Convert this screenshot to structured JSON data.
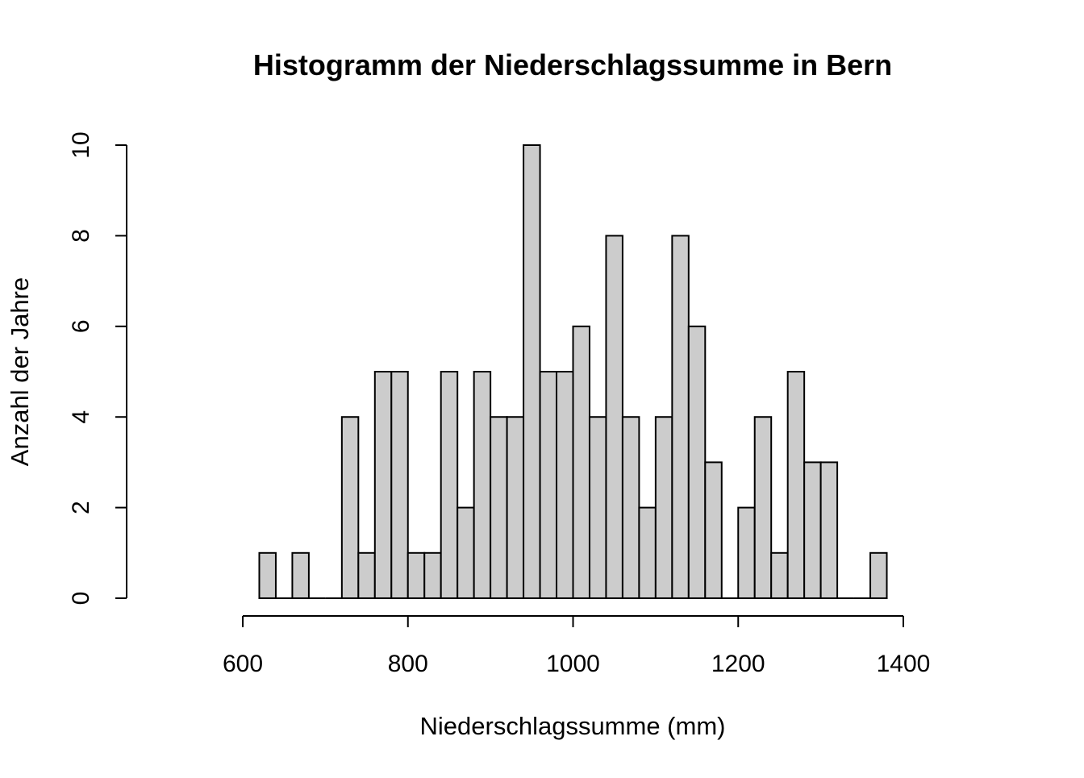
{
  "chart_data": {
    "type": "bar",
    "title": "Histogramm der Niederschlagssumme in Bern",
    "xlabel": "Niederschlagssumme (mm)",
    "ylabel": "Anzahl der Jahre",
    "bin_edges": [
      620,
      640,
      660,
      680,
      700,
      720,
      740,
      760,
      780,
      800,
      820,
      840,
      860,
      880,
      900,
      920,
      940,
      960,
      980,
      1000,
      1020,
      1040,
      1060,
      1080,
      1100,
      1120,
      1140,
      1160,
      1180,
      1200,
      1220,
      1240,
      1260,
      1280,
      1300,
      1320,
      1340,
      1360,
      1380
    ],
    "values": [
      1,
      0,
      1,
      0,
      0,
      4,
      1,
      5,
      5,
      1,
      1,
      5,
      2,
      5,
      4,
      4,
      10,
      5,
      5,
      6,
      4,
      8,
      4,
      2,
      4,
      8,
      6,
      3,
      0,
      2,
      4,
      1,
      5,
      3,
      3,
      0,
      0,
      1
    ],
    "x_ticks": [
      600,
      800,
      1000,
      1200,
      1400
    ],
    "x_tick_labels": [
      "600",
      "800",
      "1000",
      "1200",
      "1400"
    ],
    "y_ticks": [
      0,
      2,
      4,
      6,
      8,
      10
    ],
    "y_tick_labels": [
      "0",
      "2",
      "4",
      "6",
      "8",
      "10"
    ],
    "xlim": [
      600,
      1400
    ],
    "ylim": [
      0,
      10
    ],
    "grid": false,
    "bar_fill": "#cccccc",
    "bar_stroke": "#000000"
  }
}
